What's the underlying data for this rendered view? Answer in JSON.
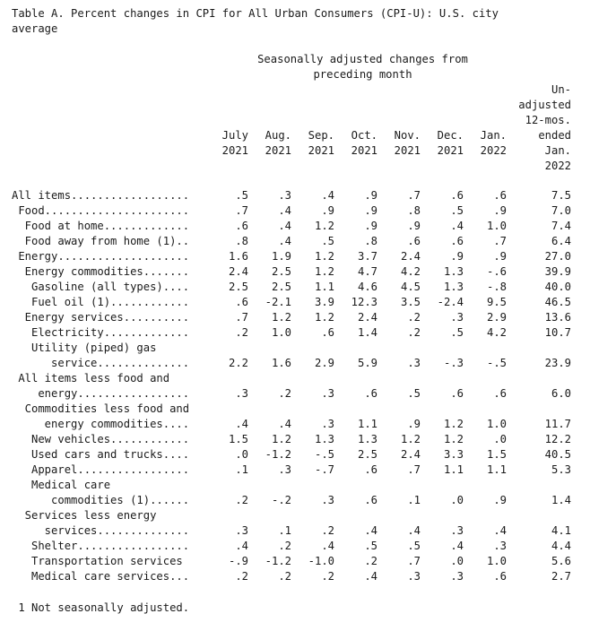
{
  "title": {
    "line1": "Table A. Percent changes in CPI for All Urban Consumers (CPI-U): U.S. city",
    "line2": "average"
  },
  "header": {
    "sa_line1": "Seasonally adjusted changes from",
    "sa_line2": "preceding month",
    "columns": [
      {
        "month": "July",
        "year": "2021"
      },
      {
        "month": "Aug.",
        "year": "2021"
      },
      {
        "month": "Sep.",
        "year": "2021"
      },
      {
        "month": "Oct.",
        "year": "2021"
      },
      {
        "month": "Nov.",
        "year": "2021"
      },
      {
        "month": "Dec.",
        "year": "2021"
      },
      {
        "month": "Jan.",
        "year": "2022"
      }
    ],
    "unadjusted": [
      "Un-",
      "adjusted",
      "12-mos.",
      "ended",
      "Jan.",
      "2022"
    ]
  },
  "rows": [
    {
      "label": "All items..................",
      "values": [
        ".5",
        ".3",
        ".4",
        ".9",
        ".7",
        ".6",
        ".6"
      ],
      "unadj": "7.5"
    },
    {
      "label": " Food......................",
      "values": [
        ".7",
        ".4",
        ".9",
        ".9",
        ".8",
        ".5",
        ".9"
      ],
      "unadj": "7.0"
    },
    {
      "label": "  Food at home.............",
      "values": [
        ".6",
        ".4",
        "1.2",
        ".9",
        ".9",
        ".4",
        "1.0"
      ],
      "unadj": "7.4"
    },
    {
      "label": "  Food away from home (1)..",
      "values": [
        ".8",
        ".4",
        ".5",
        ".8",
        ".6",
        ".6",
        ".7"
      ],
      "unadj": "6.4"
    },
    {
      "label": " Energy....................",
      "values": [
        "1.6",
        "1.9",
        "1.2",
        "3.7",
        "2.4",
        ".9",
        ".9"
      ],
      "unadj": "27.0"
    },
    {
      "label": "  Energy commodities.......",
      "values": [
        "2.4",
        "2.5",
        "1.2",
        "4.7",
        "4.2",
        "1.3",
        "-.6"
      ],
      "unadj": "39.9"
    },
    {
      "label": "   Gasoline (all types)....",
      "values": [
        "2.5",
        "2.5",
        "1.1",
        "4.6",
        "4.5",
        "1.3",
        "-.8"
      ],
      "unadj": "40.0"
    },
    {
      "label": "   Fuel oil (1)............",
      "values": [
        ".6",
        "-2.1",
        "3.9",
        "12.3",
        "3.5",
        "-2.4",
        "9.5"
      ],
      "unadj": "46.5"
    },
    {
      "label": "  Energy services..........",
      "values": [
        ".7",
        "1.2",
        "1.2",
        "2.4",
        ".2",
        ".3",
        "2.9"
      ],
      "unadj": "13.6"
    },
    {
      "label": "   Electricity.............",
      "values": [
        ".2",
        "1.0",
        ".6",
        "1.4",
        ".2",
        ".5",
        "4.2"
      ],
      "unadj": "10.7"
    },
    {
      "label": "   Utility (piped) gas",
      "values": [
        "",
        "",
        "",
        "",
        "",
        "",
        ""
      ],
      "unadj": ""
    },
    {
      "label": "      service..............",
      "values": [
        "2.2",
        "1.6",
        "2.9",
        "5.9",
        ".3",
        "-.3",
        "-.5"
      ],
      "unadj": "23.9"
    },
    {
      "label": " All items less food and",
      "values": [
        "",
        "",
        "",
        "",
        "",
        "",
        ""
      ],
      "unadj": ""
    },
    {
      "label": "    energy.................",
      "values": [
        ".3",
        ".2",
        ".3",
        ".6",
        ".5",
        ".6",
        ".6"
      ],
      "unadj": "6.0"
    },
    {
      "label": "  Commodities less food and",
      "values": [
        "",
        "",
        "",
        "",
        "",
        "",
        ""
      ],
      "unadj": ""
    },
    {
      "label": "     energy commodities....",
      "values": [
        ".4",
        ".4",
        ".3",
        "1.1",
        ".9",
        "1.2",
        "1.0"
      ],
      "unadj": "11.7"
    },
    {
      "label": "   New vehicles............",
      "values": [
        "1.5",
        "1.2",
        "1.3",
        "1.3",
        "1.2",
        "1.2",
        ".0"
      ],
      "unadj": "12.2"
    },
    {
      "label": "   Used cars and trucks....",
      "values": [
        ".0",
        "-1.2",
        "-.5",
        "2.5",
        "2.4",
        "3.3",
        "1.5"
      ],
      "unadj": "40.5"
    },
    {
      "label": "   Apparel.................",
      "values": [
        ".1",
        ".3",
        "-.7",
        ".6",
        ".7",
        "1.1",
        "1.1"
      ],
      "unadj": "5.3"
    },
    {
      "label": "   Medical care",
      "values": [
        "",
        "",
        "",
        "",
        "",
        "",
        ""
      ],
      "unadj": ""
    },
    {
      "label": "      commodities (1)......",
      "values": [
        ".2",
        "-.2",
        ".3",
        ".6",
        ".1",
        ".0",
        ".9"
      ],
      "unadj": "1.4"
    },
    {
      "label": "  Services less energy",
      "values": [
        "",
        "",
        "",
        "",
        "",
        "",
        ""
      ],
      "unadj": ""
    },
    {
      "label": "     services..............",
      "values": [
        ".3",
        ".1",
        ".2",
        ".4",
        ".4",
        ".3",
        ".4"
      ],
      "unadj": "4.1"
    },
    {
      "label": "   Shelter.................",
      "values": [
        ".4",
        ".2",
        ".4",
        ".5",
        ".5",
        ".4",
        ".3"
      ],
      "unadj": "4.4"
    },
    {
      "label": "   Transportation services",
      "values": [
        "-.9",
        "-1.2",
        "-1.0",
        ".2",
        ".7",
        ".0",
        "1.0"
      ],
      "unadj": "5.6"
    },
    {
      "label": "   Medical care services...",
      "values": [
        ".2",
        ".2",
        ".2",
        ".4",
        ".3",
        ".3",
        ".6"
      ],
      "unadj": "2.7"
    }
  ],
  "footnote": " 1 Not seasonally adjusted."
}
